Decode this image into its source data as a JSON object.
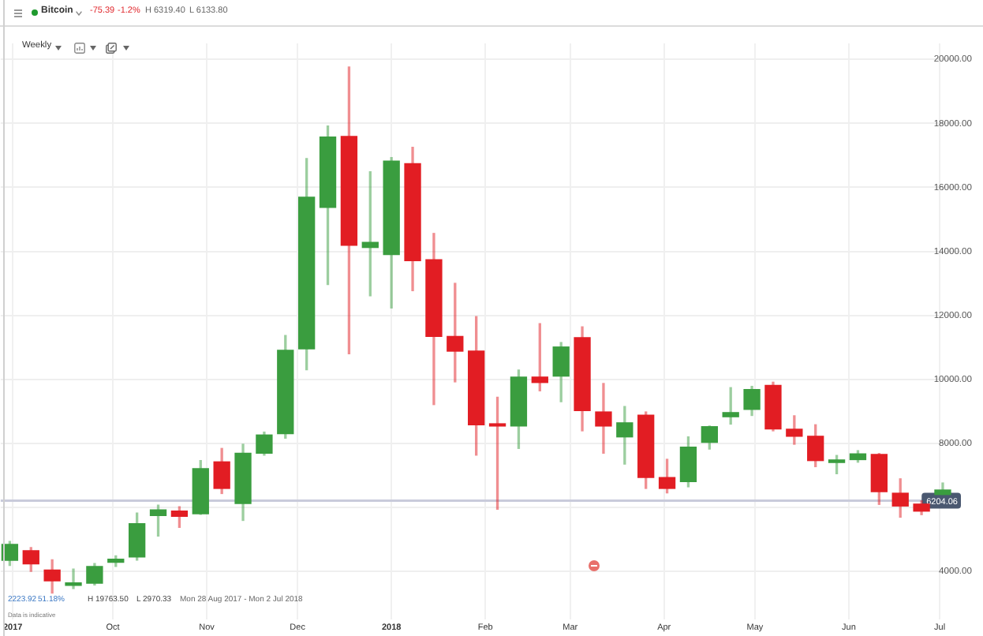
{
  "chart_data": {
    "type": "candlestick",
    "title": "Bitcoin",
    "annotations": [
      "-75.39",
      "-1.2%",
      "H 6319.40",
      "L 6133.80",
      "Weekly",
      "2223.92",
      "51.18%",
      "H 19763.50",
      "L 2970.33",
      "Mon 28 Aug 2017 - Mon 2 Jul 2018",
      "Data is indicative"
    ],
    "x": [
      "2017-08-28",
      "2017-09-04",
      "2017-09-11",
      "2017-09-18",
      "2017-09-25",
      "2017-10-02",
      "2017-10-09",
      "2017-10-16",
      "2017-10-23",
      "2017-10-30",
      "2017-11-06",
      "2017-11-13",
      "2017-11-20",
      "2017-11-27",
      "2017-12-04",
      "2017-12-11",
      "2017-12-18",
      "2017-12-25",
      "2018-01-01",
      "2018-01-08",
      "2018-01-15",
      "2018-01-22",
      "2018-01-29",
      "2018-02-05",
      "2018-02-12",
      "2018-02-19",
      "2018-02-26",
      "2018-03-05",
      "2018-03-12",
      "2018-03-19",
      "2018-03-26",
      "2018-04-02",
      "2018-04-09",
      "2018-04-16",
      "2018-04-23",
      "2018-04-30",
      "2018-05-07",
      "2018-05-14",
      "2018-05-21",
      "2018-05-28",
      "2018-06-04",
      "2018-06-11",
      "2018-06-18",
      "2018-06-25",
      "2018-07-02"
    ],
    "ohlc": [
      [
        4340,
        4930,
        4180,
        4840
      ],
      [
        4640,
        4740,
        4000,
        4230
      ],
      [
        4040,
        4360,
        3320,
        3700
      ],
      [
        3560,
        4070,
        3460,
        3640
      ],
      [
        3630,
        4240,
        3570,
        4150
      ],
      [
        4280,
        4480,
        4150,
        4380
      ],
      [
        4450,
        5820,
        4350,
        5490
      ],
      [
        5740,
        6070,
        5100,
        5920
      ],
      [
        5880,
        6020,
        5370,
        5720
      ],
      [
        5800,
        7460,
        5780,
        7210
      ],
      [
        7420,
        7840,
        6430,
        6590
      ],
      [
        6120,
        7970,
        5590,
        7690
      ],
      [
        7690,
        8350,
        7630,
        8260
      ],
      [
        8300,
        11370,
        8160,
        10910
      ],
      [
        10950,
        16900,
        10300,
        15690
      ],
      [
        15370,
        17920,
        12960,
        17570
      ],
      [
        17590,
        19763.5,
        10800,
        14190
      ],
      [
        14120,
        16490,
        12610,
        14280
      ],
      [
        13900,
        16930,
        12230,
        16820
      ],
      [
        16740,
        17250,
        12770,
        13710
      ],
      [
        13740,
        14560,
        9210,
        11340
      ],
      [
        11340,
        13000,
        9920,
        10880
      ],
      [
        10880,
        11960,
        7630,
        8580
      ],
      [
        8610,
        9440,
        5940,
        8540
      ],
      [
        8540,
        10290,
        7840,
        10070
      ],
      [
        10070,
        11740,
        9640,
        9900
      ],
      [
        10100,
        11150,
        9300,
        11010
      ],
      [
        11300,
        11640,
        8390,
        9020
      ],
      [
        8980,
        9870,
        7690,
        8540
      ],
      [
        8200,
        9150,
        7350,
        8640
      ],
      [
        8880,
        8980,
        6590,
        6930
      ],
      [
        6930,
        7500,
        6450,
        6590
      ],
      [
        6800,
        8200,
        6640,
        7880
      ],
      [
        8030,
        8540,
        7820,
        8520
      ],
      [
        8830,
        9740,
        8600,
        8960
      ],
      [
        9060,
        9780,
        8870,
        9680
      ],
      [
        9810,
        9910,
        8390,
        8450
      ],
      [
        8440,
        8860,
        7970,
        8220
      ],
      [
        8220,
        8580,
        7270,
        7460
      ],
      [
        7400,
        7620,
        7050,
        7480
      ],
      [
        7490,
        7770,
        7410,
        7670
      ],
      [
        7650,
        7680,
        6090,
        6490
      ],
      [
        6440,
        6890,
        5690,
        6040
      ],
      [
        6100,
        6200,
        5770,
        5880
      ],
      [
        6400,
        6760,
        6400,
        6540
      ]
    ],
    "colors": [
      "#3a9d3f",
      "#e21d23",
      "#e21d23",
      "#3a9d3f",
      "#3a9d3f",
      "#3a9d3f",
      "#3a9d3f",
      "#3a9d3f",
      "#e21d23",
      "#3a9d3f",
      "#e21d23",
      "#3a9d3f",
      "#3a9d3f",
      "#3a9d3f",
      "#3a9d3f",
      "#3a9d3f",
      "#e21d23",
      "#3a9d3f",
      "#3a9d3f",
      "#e21d23",
      "#e21d23",
      "#e21d23",
      "#e21d23",
      "#e21d23",
      "#3a9d3f",
      "#e21d23",
      "#3a9d3f",
      "#e21d23",
      "#e21d23",
      "#3a9d3f",
      "#e21d23",
      "#e21d23",
      "#3a9d3f",
      "#3a9d3f",
      "#3a9d3f",
      "#3a9d3f",
      "#e21d23",
      "#e21d23",
      "#e21d23",
      "#3a9d3f",
      "#3a9d3f",
      "#e21d23",
      "#e21d23",
      "#e21d23",
      "#3a9d3f"
    ],
    "xlim": [
      "2017-08-25",
      "2018-07-08"
    ],
    "xticks": [
      {
        "value": "2017-08-29",
        "label": "2017"
      },
      {
        "value": "2017-10-01",
        "label": "Oct"
      },
      {
        "value": "2017-11-01",
        "label": "Nov"
      },
      {
        "value": "2017-12-01",
        "label": "Dec"
      },
      {
        "value": "2018-01-01",
        "label": "2018"
      },
      {
        "value": "2018-02-01",
        "label": "Feb"
      },
      {
        "value": "2018-03-01",
        "label": "Mar"
      },
      {
        "value": "2018-04-01",
        "label": "Apr"
      },
      {
        "value": "2018-05-01",
        "label": "May"
      },
      {
        "value": "2018-06-01",
        "label": "Jun"
      },
      {
        "value": "2018-07-01",
        "label": "Jul"
      }
    ],
    "ylim": [
      2500,
      20500
    ],
    "yticks": [
      {
        "value": 4000,
        "label": "4000.00"
      },
      {
        "value": 6000,
        "label": null
      },
      {
        "value": 8000,
        "label": "8000.00"
      },
      {
        "value": 10000,
        "label": "10000.00"
      },
      {
        "value": 12000,
        "label": "12000.00"
      },
      {
        "value": 14000,
        "label": "14000.00"
      },
      {
        "value": 16000,
        "label": "16000.00"
      },
      {
        "value": 18000,
        "label": "18000.00"
      },
      {
        "value": 20000,
        "label": "20000.00"
      }
    ],
    "ref_lines": [
      {
        "axis": "y",
        "value": 6204.06,
        "label": "6204.06",
        "color": "#c9cbdb"
      }
    ],
    "grid": true
  }
}
